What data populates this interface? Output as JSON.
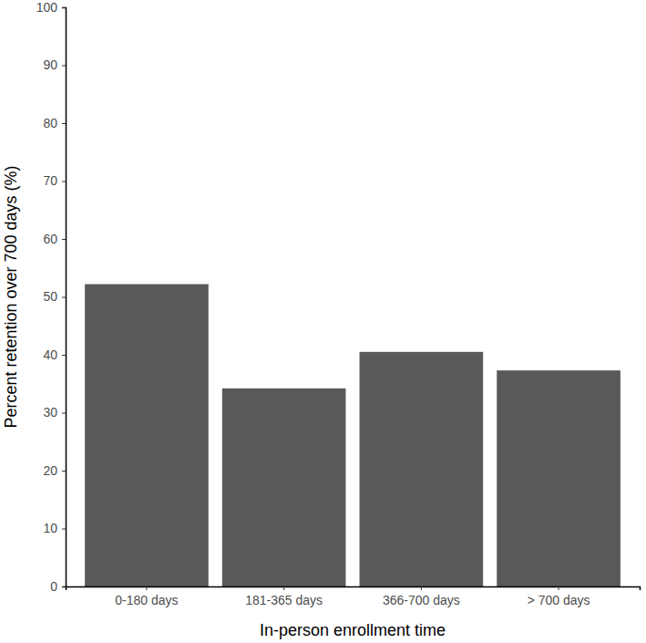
{
  "chart_data": {
    "type": "bar",
    "x_label": "In-person enrollment time",
    "y_label": "Percent retention over 700 days (%)",
    "categories": [
      "0-180 days",
      "181-365 days",
      "366-700 days",
      "> 700 days"
    ],
    "values": [
      52.2,
      34.2,
      40.5,
      37.3
    ],
    "color": "#595959",
    "ylim": [
      0,
      100
    ],
    "yticks": [
      0,
      10,
      20,
      30,
      40,
      50,
      60,
      70,
      80,
      90,
      100
    ],
    "grid": false
  }
}
